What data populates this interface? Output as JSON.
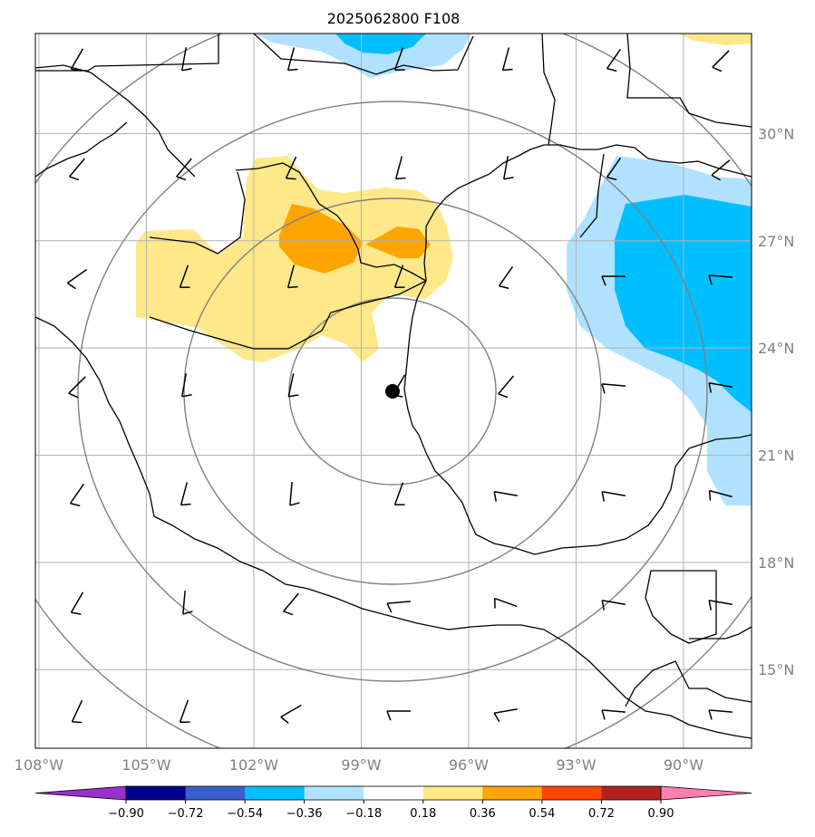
{
  "title": "2025062800 F108",
  "map": {
    "lon_range": [
      -108.1,
      -88.1
    ],
    "lat_range": [
      12.8,
      32.8
    ],
    "lon_labels": [
      "108°W",
      "105°W",
      "102°W",
      "99°W",
      "96°W",
      "93°W",
      "90°W"
    ],
    "lon_ticks": [
      -108,
      -105,
      -102,
      -99,
      -96,
      -93,
      -90
    ],
    "lat_labels": [
      "15°N",
      "18°N",
      "21°N",
      "24°N",
      "27°N",
      "30°N"
    ],
    "lat_ticks": [
      15,
      18,
      21,
      24,
      27,
      30
    ],
    "center_marker": {
      "lon": -98.0,
      "lat": 22.8
    },
    "range_rings_deg": [
      3,
      6,
      9,
      12
    ],
    "gridlines": true
  },
  "colorbar": {
    "tick_labels": [
      "−0.90",
      "−0.72",
      "−0.54",
      "−0.36",
      "−0.18",
      "0.18",
      "0.36",
      "0.54",
      "0.72",
      "0.90"
    ],
    "colors": [
      "#9932cc",
      "#00008b",
      "#3a5fcd",
      "#00bfff",
      "#b0e2ff",
      "#ffffff",
      "#ffe88a",
      "#ffa500",
      "#ff4500",
      "#b22222",
      "#ff7fb0"
    ]
  }
}
